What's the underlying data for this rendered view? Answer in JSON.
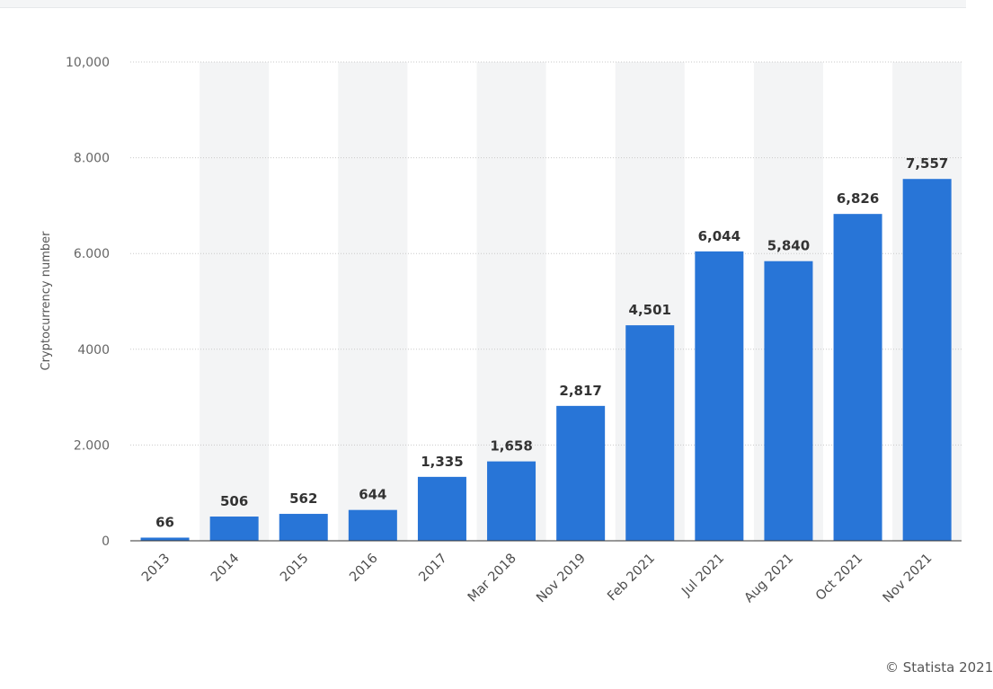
{
  "chart_data": {
    "type": "bar",
    "categories": [
      "2013",
      "2014",
      "2015",
      "2016",
      "2017",
      "Mar 2018",
      "Nov 2019",
      "Feb 2021",
      "Jul 2021",
      "Aug 2021",
      "Oct 2021",
      "Nov 2021"
    ],
    "values": [
      66,
      506,
      562,
      644,
      1335,
      1658,
      2817,
      4501,
      6044,
      5840,
      6826,
      7557
    ],
    "value_labels": [
      "66",
      "506",
      "562",
      "644",
      "1,335",
      "1,658",
      "2,817",
      "4,501",
      "6,044",
      "5,840",
      "6,826",
      "7,557"
    ],
    "ylabel": "Cryptocurrency number",
    "ylim": [
      0,
      10000
    ],
    "yticks": [
      0,
      2000,
      4000,
      6000,
      8000,
      10000
    ],
    "ytick_labels": [
      "0",
      "2.000",
      "4000",
      "6.000",
      "8.000",
      "10,000"
    ],
    "grid": true,
    "alternating_column_shading": true,
    "colors": {
      "bar": "#2875d7",
      "column_shade": "#f3f4f5",
      "grid": "#c9c9c9"
    }
  },
  "credit": "© Statista 2021"
}
